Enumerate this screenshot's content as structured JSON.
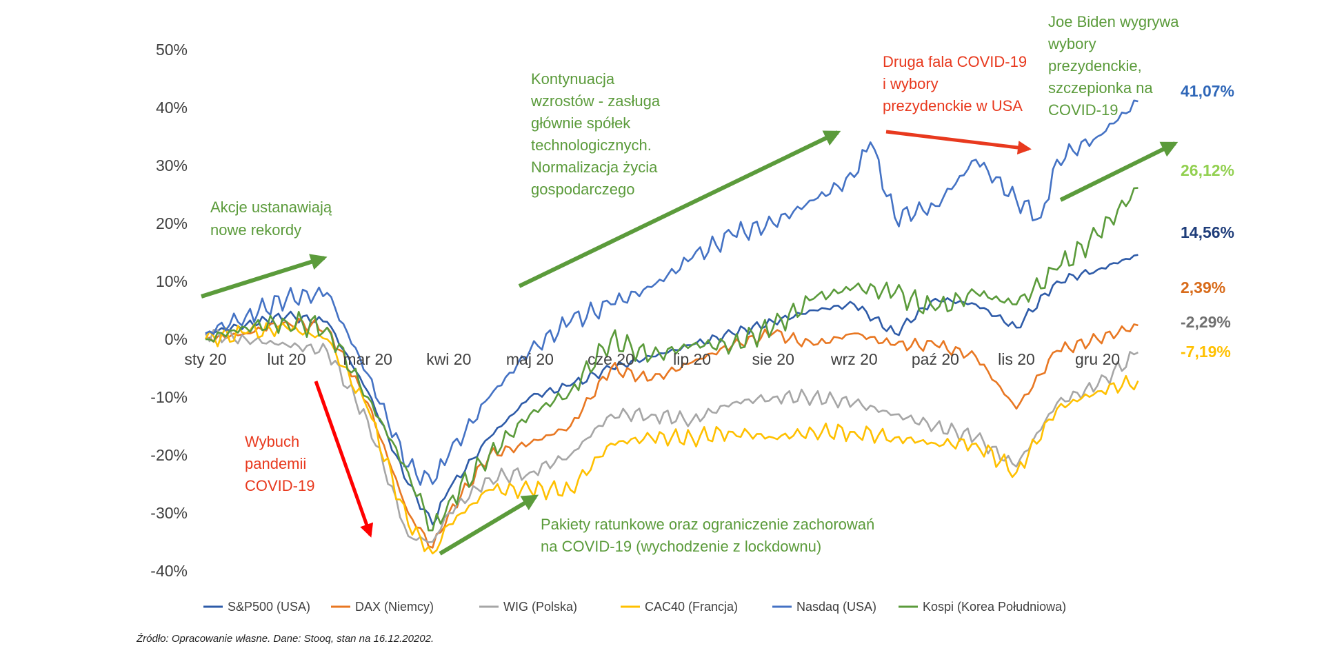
{
  "chart_data": {
    "type": "line",
    "x_labels": [
      "sty 20",
      "lut 20",
      "mar 20",
      "kwi 20",
      "maj 20",
      "cze 20",
      "lip 20",
      "sie 20",
      "wrz 20",
      "paź 20",
      "lis 20",
      "gru 20"
    ],
    "y_ticks": [
      "50%",
      "40%",
      "30%",
      "20%",
      "10%",
      "0%",
      "-10%",
      "-20%",
      "-30%",
      "-40%"
    ],
    "ylim": [
      -40,
      50
    ],
    "y_unit": "%",
    "grid": false,
    "legend_position": "bottom",
    "series": [
      {
        "name": "S&P500 (USA)",
        "color": "#2E5BA8",
        "end_value": 14.56,
        "end_label": "14,56%",
        "points": [
          [
            0,
            1
          ],
          [
            0.5,
            2.5
          ],
          [
            1,
            4
          ],
          [
            1.5,
            3
          ],
          [
            2,
            -9
          ],
          [
            2.5,
            -25
          ],
          [
            2.8,
            -32
          ],
          [
            3,
            -26
          ],
          [
            3.5,
            -17
          ],
          [
            4,
            -10
          ],
          [
            4.5,
            -8
          ],
          [
            5,
            -5
          ],
          [
            5.5,
            -3
          ],
          [
            6,
            -1
          ],
          [
            6.5,
            1
          ],
          [
            7,
            3
          ],
          [
            7.5,
            5
          ],
          [
            8,
            6
          ],
          [
            8.5,
            1
          ],
          [
            9,
            7
          ],
          [
            9.5,
            6
          ],
          [
            10,
            2
          ],
          [
            10.5,
            10
          ],
          [
            11,
            12
          ],
          [
            11.5,
            14.56
          ]
        ]
      },
      {
        "name": "DAX (Niemcy)",
        "color": "#E87722",
        "end_value": 2.39,
        "end_label": "2,39%",
        "points": [
          [
            0,
            0
          ],
          [
            0.5,
            1
          ],
          [
            1,
            3
          ],
          [
            1.5,
            2
          ],
          [
            2,
            -11
          ],
          [
            2.5,
            -30
          ],
          [
            2.8,
            -36
          ],
          [
            3,
            -30
          ],
          [
            3.5,
            -20
          ],
          [
            4,
            -18
          ],
          [
            4.5,
            -15
          ],
          [
            5,
            -5
          ],
          [
            5.5,
            -7
          ],
          [
            6,
            -4
          ],
          [
            6.5,
            -1
          ],
          [
            7,
            1
          ],
          [
            7.5,
            -1
          ],
          [
            8,
            1
          ],
          [
            8.5,
            -1
          ],
          [
            9,
            -1
          ],
          [
            9.5,
            -3
          ],
          [
            10,
            -12
          ],
          [
            10.5,
            -2
          ],
          [
            11,
            0
          ],
          [
            11.5,
            2.39
          ]
        ]
      },
      {
        "name": "WIG (Polska)",
        "color": "#A6A6A6",
        "end_value": -2.29,
        "end_label": "-2,29%",
        "points": [
          [
            0,
            1
          ],
          [
            0.5,
            0
          ],
          [
            1,
            -1
          ],
          [
            1.5,
            -2
          ],
          [
            2,
            -14
          ],
          [
            2.5,
            -34
          ],
          [
            2.8,
            -35
          ],
          [
            3,
            -30
          ],
          [
            3.5,
            -24
          ],
          [
            4,
            -23
          ],
          [
            4.5,
            -20
          ],
          [
            5,
            -13
          ],
          [
            5.5,
            -13
          ],
          [
            6,
            -14
          ],
          [
            6.5,
            -11
          ],
          [
            7,
            -10
          ],
          [
            7.5,
            -10
          ],
          [
            8,
            -11
          ],
          [
            8.5,
            -13
          ],
          [
            9,
            -15
          ],
          [
            9.5,
            -17
          ],
          [
            10,
            -22
          ],
          [
            10.5,
            -11
          ],
          [
            11,
            -8
          ],
          [
            11.5,
            -2.29
          ]
        ]
      },
      {
        "name": "CAC40 (Francja)",
        "color": "#FFC000",
        "end_value": -7.19,
        "end_label": "-7,19%",
        "points": [
          [
            0,
            0
          ],
          [
            0.5,
            1
          ],
          [
            1,
            2
          ],
          [
            1.5,
            0
          ],
          [
            2,
            -12
          ],
          [
            2.5,
            -32
          ],
          [
            2.8,
            -37
          ],
          [
            3,
            -32
          ],
          [
            3.5,
            -26
          ],
          [
            4,
            -26
          ],
          [
            4.5,
            -26
          ],
          [
            5,
            -18
          ],
          [
            5.5,
            -17
          ],
          [
            6,
            -17
          ],
          [
            6.5,
            -16
          ],
          [
            7,
            -17
          ],
          [
            7.5,
            -16
          ],
          [
            8,
            -16
          ],
          [
            8.5,
            -17
          ],
          [
            9,
            -18
          ],
          [
            9.5,
            -18
          ],
          [
            10,
            -23
          ],
          [
            10.5,
            -12
          ],
          [
            11,
            -9
          ],
          [
            11.5,
            -7.19
          ]
        ]
      },
      {
        "name": "Nasdaq (USA)",
        "color": "#4472C4",
        "end_value": 41.07,
        "end_label": "41,07%",
        "points": [
          [
            0,
            1
          ],
          [
            0.5,
            4
          ],
          [
            1,
            7
          ],
          [
            1.5,
            8
          ],
          [
            2,
            -6
          ],
          [
            2.5,
            -22
          ],
          [
            2.8,
            -25
          ],
          [
            3,
            -20
          ],
          [
            3.5,
            -10
          ],
          [
            4,
            -2
          ],
          [
            4.5,
            3
          ],
          [
            5,
            6
          ],
          [
            5.5,
            9
          ],
          [
            6,
            14
          ],
          [
            6.5,
            18
          ],
          [
            7,
            20
          ],
          [
            7.5,
            24
          ],
          [
            8,
            28
          ],
          [
            8.2,
            34
          ],
          [
            8.5,
            21
          ],
          [
            9,
            23
          ],
          [
            9.5,
            31
          ],
          [
            10,
            24
          ],
          [
            10.3,
            21
          ],
          [
            10.5,
            31
          ],
          [
            11,
            35
          ],
          [
            11.5,
            41.07
          ]
        ]
      },
      {
        "name": "Kospi (Korea Południowa)",
        "color": "#5B9B3B",
        "end_value": 26.12,
        "end_label": "26,12%",
        "points": [
          [
            0,
            0
          ],
          [
            0.5,
            2
          ],
          [
            1,
            3
          ],
          [
            1.5,
            2
          ],
          [
            2,
            -10
          ],
          [
            2.5,
            -23
          ],
          [
            2.8,
            -33
          ],
          [
            3,
            -28
          ],
          [
            3.5,
            -20
          ],
          [
            4,
            -13
          ],
          [
            4.5,
            -9
          ],
          [
            5,
            0
          ],
          [
            5.5,
            -3
          ],
          [
            6,
            -1
          ],
          [
            6.5,
            -1
          ],
          [
            7,
            2
          ],
          [
            7.5,
            7
          ],
          [
            8,
            9
          ],
          [
            8.5,
            8
          ],
          [
            9,
            5
          ],
          [
            9.5,
            8
          ],
          [
            10,
            6
          ],
          [
            10.5,
            12
          ],
          [
            11,
            18
          ],
          [
            11.5,
            26.12
          ]
        ]
      }
    ]
  },
  "annotations": {
    "rekordy": [
      "Akcje ustanawiają",
      "nowe rekordy"
    ],
    "pandemia": [
      "Wybuch",
      "pandemii",
      "COVID-19"
    ],
    "pakiety": [
      "Pakiety ratunkowe oraz ograniczenie zachorowań",
      "na COVID-19 (wychodzenie z lockdownu)"
    ],
    "kontynuacja": [
      "Kontynuacja",
      "wzrostów - zasługa",
      "głównie spółek",
      "technologicznych.",
      "Normalizacja życia",
      "gospodarczego"
    ],
    "druga_fala": [
      "Druga fala COVID-19",
      "i wybory",
      "prezydenckie w USA"
    ],
    "biden": [
      "Joe Biden wygrywa",
      "wybory",
      "prezydenckie,",
      "szczepionka na",
      "COVID-19"
    ]
  },
  "colors": {
    "annotation_green": "#5B9B3B",
    "annotation_red": "#E8391E",
    "arrow_green": "#5B9B3B",
    "arrow_red": "#FF0000",
    "arrow_orange": "#E8391E"
  },
  "source_note": "Źródło: Opracowanie własne. Dane: Stooq, stan na 16.12.20202."
}
